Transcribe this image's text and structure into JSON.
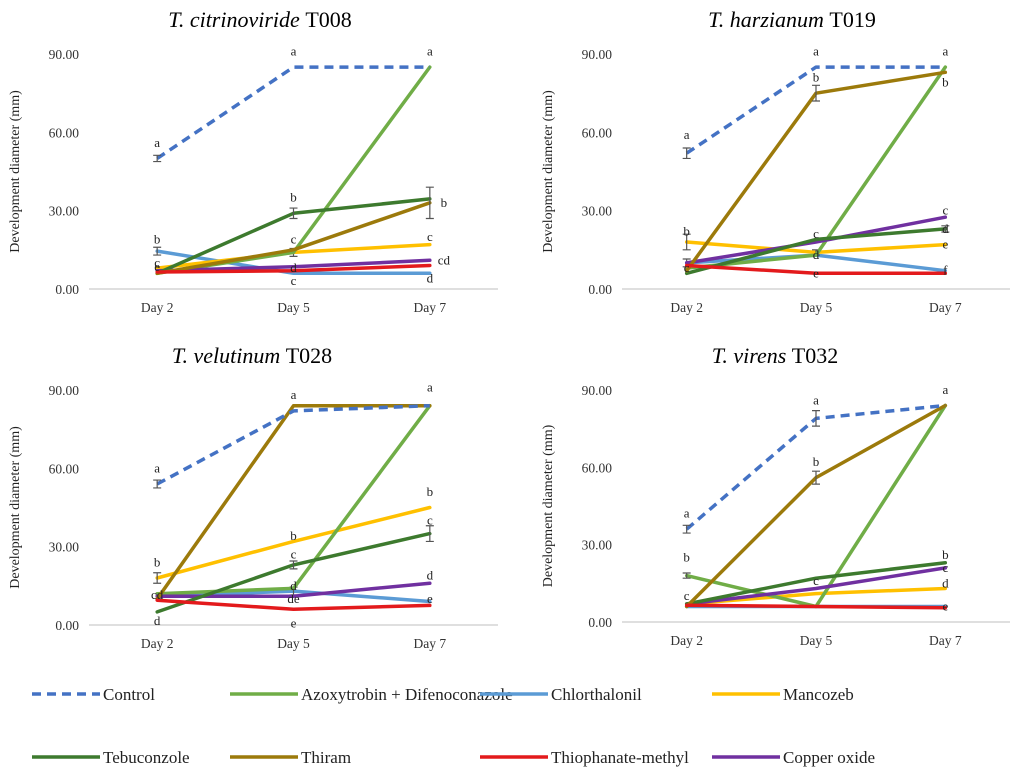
{
  "series_styles": [
    {
      "name": "Control",
      "color": "#4472C4",
      "dash": true
    },
    {
      "name": "Azoxytrobin + Difenoconazole",
      "color": "#70AD47",
      "dash": false
    },
    {
      "name": "Chlorthalonil",
      "color": "#5B9BD5",
      "dash": false
    },
    {
      "name": "Mancozeb",
      "color": "#FFC000",
      "dash": false
    },
    {
      "name": "Tebuconzole",
      "color": "#3D7A2E",
      "dash": false
    },
    {
      "name": "Thiram",
      "color": "#9C7A0B",
      "dash": false
    },
    {
      "name": "Thiophanate-methyl",
      "color": "#E31A1C",
      "dash": false
    },
    {
      "name": "Copper oxide",
      "color": "#7030A0",
      "dash": false
    }
  ],
  "chart_data": [
    {
      "type": "line",
      "title_italic": "T. citrinoviride",
      "title_plain": " T008",
      "ylabel": "Development diameter (mm)",
      "categories": [
        "Day 2",
        "Day 5",
        "Day 7"
      ],
      "ylim": [
        0,
        90
      ],
      "yticks": [
        "0.00",
        "30.00",
        "60.00",
        "90.00"
      ],
      "series": [
        {
          "name": "Control",
          "values": [
            50,
            85,
            85
          ],
          "errors": [
            1.2,
            0,
            0
          ]
        },
        {
          "name": "Azoxytrobin + Difenoconazole",
          "values": [
            6,
            14,
            85
          ],
          "errors": [
            0,
            0,
            0
          ]
        },
        {
          "name": "Chlorthalonil",
          "values": [
            14.5,
            6,
            6
          ],
          "errors": [
            1.5,
            0,
            0
          ]
        },
        {
          "name": "Mancozeb",
          "values": [
            8,
            14,
            17
          ],
          "errors": [
            0,
            1.5,
            0
          ]
        },
        {
          "name": "Tebuconzole",
          "values": [
            6,
            29,
            34.5
          ],
          "errors": [
            0,
            2,
            0
          ]
        },
        {
          "name": "Thiram",
          "values": [
            6,
            15,
            33
          ],
          "errors": [
            0,
            0,
            6
          ]
        },
        {
          "name": "Thiophanate-methyl",
          "values": [
            6.5,
            7,
            9
          ],
          "errors": [
            0,
            0,
            0
          ]
        },
        {
          "name": "Copper oxide",
          "values": [
            7,
            8.5,
            11
          ],
          "errors": [
            0,
            0,
            0
          ]
        }
      ],
      "letters": [
        {
          "text": "a",
          "day": 0,
          "y": 56
        },
        {
          "text": "b",
          "day": 0,
          "y": 19
        },
        {
          "text": "c",
          "day": 0,
          "y": 10
        },
        {
          "text": "e",
          "day": 0,
          "y": 8.5
        },
        {
          "text": "a",
          "day": 1,
          "y": 91
        },
        {
          "text": "b",
          "day": 1,
          "y": 35
        },
        {
          "text": "c",
          "day": 1,
          "y": 19
        },
        {
          "text": "d",
          "day": 1,
          "y": 8
        },
        {
          "text": "c",
          "day": 1,
          "y": 3
        },
        {
          "text": "a",
          "day": 2,
          "y": 91
        },
        {
          "text": "b",
          "day": 2,
          "y": 33,
          "dx": 14
        },
        {
          "text": "c",
          "day": 2,
          "y": 20
        },
        {
          "text": "cd",
          "day": 2,
          "y": 11,
          "dx": 14
        },
        {
          "text": "d",
          "day": 2,
          "y": 4
        }
      ]
    },
    {
      "type": "line",
      "title_italic": "T. harzianum",
      "title_plain": " T019",
      "ylabel": "Development diameter (mm)",
      "categories": [
        "Day 2",
        "Day 5",
        "Day 7"
      ],
      "ylim": [
        0,
        90
      ],
      "yticks": [
        "0.00",
        "30.00",
        "60.00",
        "90.00"
      ],
      "series": [
        {
          "name": "Control",
          "values": [
            52,
            85,
            85
          ],
          "errors": [
            2,
            0,
            0
          ]
        },
        {
          "name": "Azoxytrobin + Difenoconazole",
          "values": [
            8,
            13,
            85
          ],
          "errors": [
            0,
            0,
            0
          ]
        },
        {
          "name": "Chlorthalonil",
          "values": [
            10,
            13,
            7
          ],
          "errors": [
            1.5,
            0,
            0
          ]
        },
        {
          "name": "Mancozeb",
          "values": [
            18,
            14,
            17
          ],
          "errors": [
            3,
            1,
            0
          ]
        },
        {
          "name": "Tebuconzole",
          "values": [
            6,
            19,
            23
          ],
          "errors": [
            0,
            0,
            1.2
          ]
        },
        {
          "name": "Thiram",
          "values": [
            7,
            75,
            83
          ],
          "errors": [
            0,
            3,
            0
          ]
        },
        {
          "name": "Thiophanate-methyl",
          "values": [
            9,
            6,
            6
          ],
          "errors": [
            0,
            0,
            0
          ]
        },
        {
          "name": "Copper oxide",
          "values": [
            10,
            18,
            27.5
          ],
          "errors": [
            0,
            0,
            0
          ]
        }
      ],
      "letters": [
        {
          "text": "a",
          "day": 0,
          "y": 59
        },
        {
          "text": "b",
          "day": 0,
          "y": 22
        },
        {
          "text": "c",
          "day": 0,
          "y": 8
        },
        {
          "text": "a",
          "day": 1,
          "y": 91
        },
        {
          "text": "b",
          "day": 1,
          "y": 81
        },
        {
          "text": "c",
          "day": 1,
          "y": 21
        },
        {
          "text": "d",
          "day": 1,
          "y": 13
        },
        {
          "text": "e",
          "day": 1,
          "y": 6
        },
        {
          "text": "a",
          "day": 2,
          "y": 91
        },
        {
          "text": "b",
          "day": 2,
          "y": 79
        },
        {
          "text": "c",
          "day": 2,
          "y": 30
        },
        {
          "text": "d",
          "day": 2,
          "y": 23
        },
        {
          "text": "e",
          "day": 2,
          "y": 17
        },
        {
          "text": "f",
          "day": 2,
          "y": 7
        }
      ]
    },
    {
      "type": "line",
      "title_italic": "T. velutinum",
      "title_plain": " T028",
      "ylabel": "Development diameter (mm)",
      "categories": [
        "Day 2",
        "Day 5",
        "Day 7"
      ],
      "ylim": [
        0,
        90
      ],
      "yticks": [
        "0.00",
        "30.00",
        "60.00",
        "90.00"
      ],
      "series": [
        {
          "name": "Control",
          "values": [
            54,
            82,
            84
          ],
          "errors": [
            1.5,
            0,
            0
          ]
        },
        {
          "name": "Azoxytrobin + Difenoconazole",
          "values": [
            12,
            14,
            84
          ],
          "errors": [
            0,
            0,
            0
          ]
        },
        {
          "name": "Chlorthalonil",
          "values": [
            11,
            13,
            9
          ],
          "errors": [
            0,
            1.5,
            0
          ]
        },
        {
          "name": "Mancozeb",
          "values": [
            18,
            32,
            45
          ],
          "errors": [
            2,
            0,
            0
          ]
        },
        {
          "name": "Tebuconzole",
          "values": [
            5,
            23,
            35
          ],
          "errors": [
            0,
            1.5,
            3
          ]
        },
        {
          "name": "Thiram",
          "values": [
            10,
            84,
            84
          ],
          "errors": [
            0,
            0,
            0
          ]
        },
        {
          "name": "Thiophanate-methyl",
          "values": [
            9.5,
            6,
            7.5
          ],
          "errors": [
            0,
            0,
            0
          ]
        },
        {
          "name": "Copper oxide",
          "values": [
            11,
            11,
            16
          ],
          "errors": [
            0,
            0,
            0
          ]
        }
      ],
      "letters": [
        {
          "text": "a",
          "day": 0,
          "y": 60
        },
        {
          "text": "b",
          "day": 0,
          "y": 24
        },
        {
          "text": "cd",
          "day": 0,
          "y": 11.5
        },
        {
          "text": "d",
          "day": 0,
          "y": 1.5
        },
        {
          "text": "a",
          "day": 1,
          "y": 88
        },
        {
          "text": "b",
          "day": 1,
          "y": 34
        },
        {
          "text": "c",
          "day": 1,
          "y": 27
        },
        {
          "text": "d",
          "day": 1,
          "y": 15
        },
        {
          "text": "de",
          "day": 1,
          "y": 10
        },
        {
          "text": "e",
          "day": 1,
          "y": 0.5
        },
        {
          "text": "a",
          "day": 2,
          "y": 91
        },
        {
          "text": "b",
          "day": 2,
          "y": 51
        },
        {
          "text": "c",
          "day": 2,
          "y": 40
        },
        {
          "text": "d",
          "day": 2,
          "y": 19
        },
        {
          "text": "e",
          "day": 2,
          "y": 10
        }
      ]
    },
    {
      "type": "line",
      "title_italic": "T. virens",
      "title_plain": " T032",
      "ylabel": "Development diameter (mm)",
      "categories": [
        "Day 2",
        "Day 5",
        "Day 7"
      ],
      "ylim": [
        0,
        90
      ],
      "yticks": [
        "0.00",
        "30.00",
        "60.00",
        "90.00"
      ],
      "series": [
        {
          "name": "Control",
          "values": [
            36,
            79,
            84
          ],
          "errors": [
            1.5,
            3,
            0
          ]
        },
        {
          "name": "Azoxytrobin + Difenoconazole",
          "values": [
            18,
            6,
            84
          ],
          "errors": [
            1,
            0,
            0
          ]
        },
        {
          "name": "Chlorthalonil",
          "values": [
            6,
            6,
            6
          ],
          "errors": [
            0,
            0,
            0
          ]
        },
        {
          "name": "Mancozeb",
          "values": [
            7,
            11,
            13
          ],
          "errors": [
            0,
            0,
            0
          ]
        },
        {
          "name": "Tebuconzole",
          "values": [
            7,
            17,
            23
          ],
          "errors": [
            0,
            0,
            0
          ]
        },
        {
          "name": "Thiram",
          "values": [
            6,
            56,
            84
          ],
          "errors": [
            0,
            2.5,
            0
          ]
        },
        {
          "name": "Thiophanate-methyl",
          "values": [
            6.5,
            6,
            5.5
          ],
          "errors": [
            0,
            0,
            0
          ]
        },
        {
          "name": "Copper oxide",
          "values": [
            7,
            13,
            21
          ],
          "errors": [
            0,
            0,
            0
          ]
        }
      ],
      "letters": [
        {
          "text": "a",
          "day": 0,
          "y": 42
        },
        {
          "text": "b",
          "day": 0,
          "y": 25
        },
        {
          "text": "c",
          "day": 0,
          "y": 10
        },
        {
          "text": "a",
          "day": 1,
          "y": 86
        },
        {
          "text": "b",
          "day": 1,
          "y": 62
        },
        {
          "text": "c",
          "day": 1,
          "y": 16
        },
        {
          "text": "a",
          "day": 2,
          "y": 90
        },
        {
          "text": "b",
          "day": 2,
          "y": 26
        },
        {
          "text": "c",
          "day": 2,
          "y": 21
        },
        {
          "text": "d",
          "day": 2,
          "y": 15
        },
        {
          "text": "e",
          "day": 2,
          "y": 6
        }
      ]
    }
  ]
}
